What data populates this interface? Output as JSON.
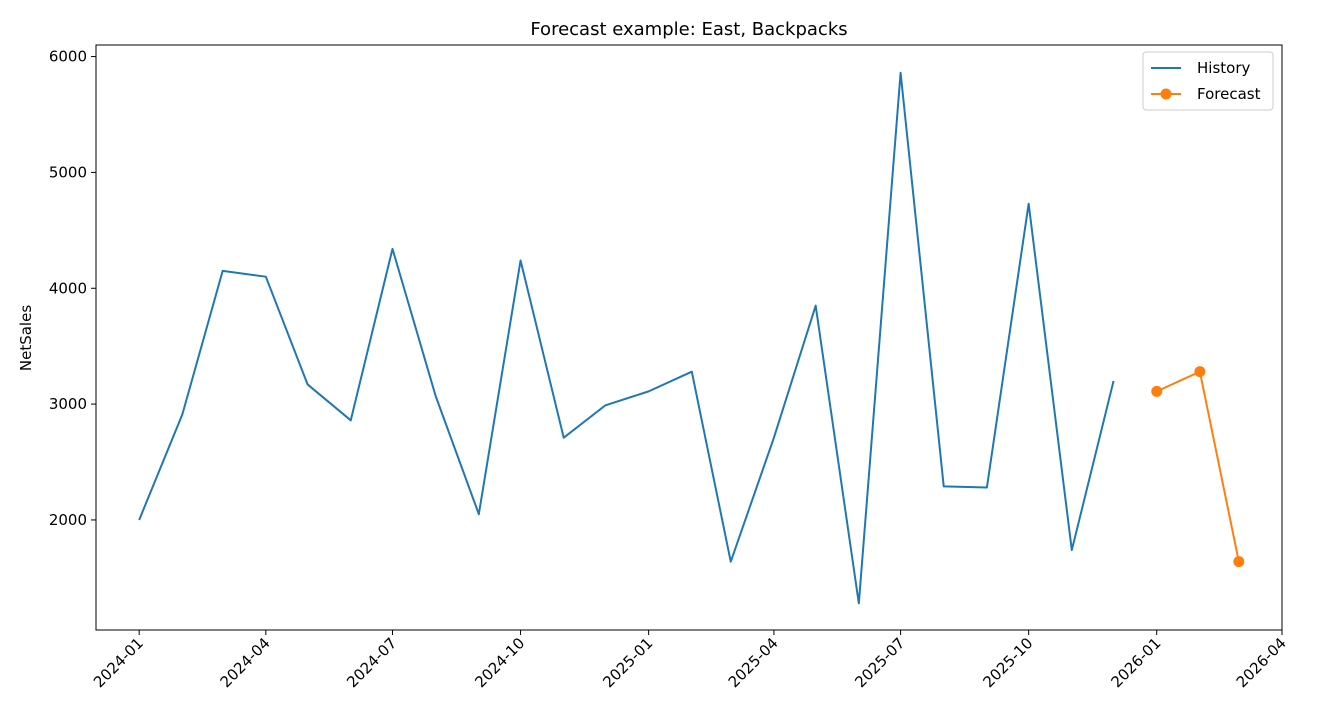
{
  "chart_data": {
    "type": "line",
    "title": "Forecast example: East, Backpacks",
    "xlabel": "",
    "ylabel": "NetSales",
    "legend_position": "top-right",
    "grid": false,
    "xlim": [
      "2023-12-01",
      "2026-04-01"
    ],
    "ylim": [
      1050,
      6100
    ],
    "x_ticks": [
      "2024-01",
      "2024-04",
      "2024-07",
      "2024-10",
      "2025-01",
      "2025-04",
      "2025-07",
      "2025-10",
      "2026-01",
      "2026-04"
    ],
    "y_ticks": [
      2000,
      3000,
      4000,
      5000,
      6000
    ],
    "series": [
      {
        "name": "History",
        "color": "#1f77b4",
        "marker": "none",
        "x": [
          "2024-01",
          "2024-02",
          "2024-03",
          "2024-04",
          "2024-05",
          "2024-06",
          "2024-07",
          "2024-08",
          "2024-09",
          "2024-10",
          "2024-11",
          "2024-12",
          "2025-01",
          "2025-02",
          "2025-03",
          "2025-04",
          "2025-05",
          "2025-06",
          "2025-07",
          "2025-08",
          "2025-09",
          "2025-10",
          "2025-11",
          "2025-12"
        ],
        "values": [
          2000,
          2910,
          4150,
          4100,
          3170,
          2860,
          4340,
          3070,
          2050,
          4240,
          2710,
          2990,
          3110,
          3280,
          1640,
          2710,
          3850,
          1280,
          5860,
          2290,
          2280,
          4730,
          1740,
          3200
        ]
      },
      {
        "name": "Forecast",
        "color": "#ff7f0e",
        "marker": "circle",
        "x": [
          "2026-01",
          "2026-02",
          "2026-03"
        ],
        "values": [
          3110,
          3280,
          1640
        ]
      }
    ]
  }
}
